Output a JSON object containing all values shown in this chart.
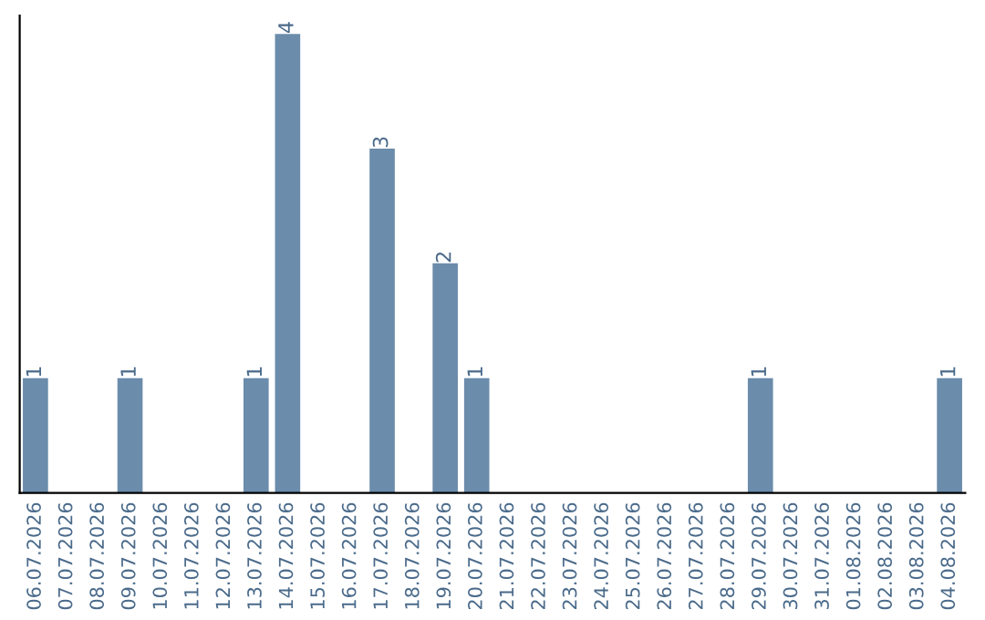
{
  "chart_data": {
    "type": "bar",
    "categories": [
      "06.07.2026",
      "07.07.2026",
      "08.07.2026",
      "09.07.2026",
      "10.07.2026",
      "11.07.2026",
      "12.07.2026",
      "13.07.2026",
      "14.07.2026",
      "15.07.2026",
      "16.07.2026",
      "17.07.2026",
      "18.07.2026",
      "19.07.2026",
      "20.07.2026",
      "21.07.2026",
      "22.07.2026",
      "23.07.2026",
      "24.07.2026",
      "25.07.2026",
      "26.07.2026",
      "27.07.2026",
      "28.07.2026",
      "29.07.2026",
      "30.07.2026",
      "31.07.2026",
      "01.08.2026",
      "02.08.2026",
      "03.08.2026",
      "04.08.2026"
    ],
    "values": [
      1,
      0,
      0,
      1,
      0,
      0,
      0,
      1,
      4,
      0,
      0,
      3,
      0,
      2,
      1,
      0,
      0,
      0,
      0,
      0,
      0,
      0,
      0,
      1,
      0,
      0,
      0,
      0,
      0,
      1
    ],
    "value_labels": [
      "1",
      null,
      null,
      "1",
      null,
      null,
      null,
      "1",
      "4",
      null,
      null,
      "3",
      null,
      "2",
      "1",
      null,
      null,
      null,
      null,
      null,
      null,
      null,
      null,
      "1",
      null,
      null,
      null,
      null,
      null,
      "1"
    ],
    "color": "#6b8cab",
    "tick_labels": "x",
    "grid": false,
    "legend": false
  }
}
